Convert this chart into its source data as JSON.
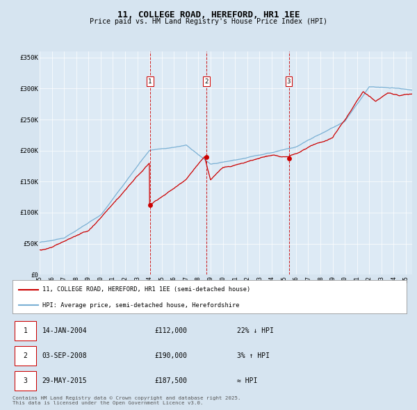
{
  "title": "11, COLLEGE ROAD, HEREFORD, HR1 1EE",
  "subtitle": "Price paid vs. HM Land Registry's House Price Index (HPI)",
  "bg_color": "#d6e4f0",
  "plot_bg_color": "#ddeaf5",
  "line1_color": "#cc0000",
  "line2_color": "#7ab0d4",
  "marker_color": "#cc0000",
  "vline_color": "#cc0000",
  "sale1_date_num": 2004.04,
  "sale1_price": 112000,
  "sale2_date_num": 2008.67,
  "sale2_price": 190000,
  "sale3_date_num": 2015.41,
  "sale3_price": 187500,
  "ylim_min": 0,
  "ylim_max": 360000,
  "xlim_min": 1995,
  "xlim_max": 2025.5,
  "legend_line1": "11, COLLEGE ROAD, HEREFORD, HR1 1EE (semi-detached house)",
  "legend_line2": "HPI: Average price, semi-detached house, Herefordshire",
  "table": [
    {
      "num": "1",
      "date": "14-JAN-2004",
      "price": "£112,000",
      "hpi": "22% ↓ HPI"
    },
    {
      "num": "2",
      "date": "03-SEP-2008",
      "price": "£190,000",
      "hpi": "3% ↑ HPI"
    },
    {
      "num": "3",
      "date": "29-MAY-2015",
      "price": "£187,500",
      "hpi": "≈ HPI"
    }
  ],
  "footer": "Contains HM Land Registry data © Crown copyright and database right 2025.\nThis data is licensed under the Open Government Licence v3.0.",
  "yticks": [
    0,
    50000,
    100000,
    150000,
    200000,
    250000,
    300000,
    350000
  ],
  "ytick_labels": [
    "£0",
    "£50K",
    "£100K",
    "£150K",
    "£200K",
    "£250K",
    "£300K",
    "£350K"
  ],
  "xticks": [
    1995,
    1996,
    1997,
    1998,
    1999,
    2000,
    2001,
    2002,
    2003,
    2004,
    2005,
    2006,
    2007,
    2008,
    2009,
    2010,
    2011,
    2012,
    2013,
    2014,
    2015,
    2016,
    2017,
    2018,
    2019,
    2020,
    2021,
    2022,
    2023,
    2024,
    2025
  ],
  "xtick_labels": [
    "95",
    "96",
    "97",
    "98",
    "99",
    "00",
    "01",
    "02",
    "03",
    "04",
    "05",
    "06",
    "07",
    "08",
    "09",
    "10",
    "11",
    "12",
    "13",
    "14",
    "15",
    "16",
    "17",
    "18",
    "19",
    "20",
    "21",
    "22",
    "23",
    "24",
    "25"
  ]
}
